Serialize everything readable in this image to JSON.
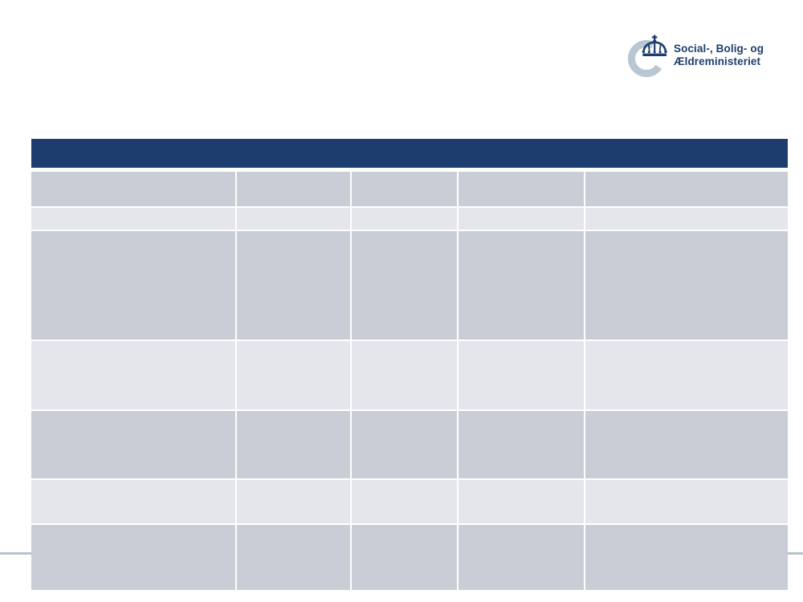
{
  "logo": {
    "icon_name": "danish-crown-crescent-logo",
    "name_line1": "Social-, Bolig- og",
    "name_line2": "Ældreministeriet",
    "text_color": "#1e3d6e",
    "crown_color": "#1e3d6e",
    "crescent_color": "#b9c7d2"
  },
  "title_bar": {
    "label": "",
    "background": "#1c3d6e"
  },
  "table": {
    "column_count": 5,
    "row_colors": {
      "dark": "#c9cdd5",
      "light": "#e4e6eb"
    },
    "rows": [
      {
        "cells": [
          "",
          "",
          "",
          "",
          ""
        ]
      },
      {
        "cells": [
          "",
          "",
          "",
          "",
          ""
        ]
      },
      {
        "cells": [
          "",
          "",
          "",
          "",
          ""
        ]
      },
      {
        "cells": [
          "",
          "",
          "",
          "",
          ""
        ]
      },
      {
        "cells": [
          "",
          "",
          "",
          "",
          ""
        ]
      },
      {
        "cells": [
          "",
          "",
          "",
          "",
          ""
        ]
      },
      {
        "cells": [
          "",
          "",
          "",
          "",
          ""
        ]
      }
    ]
  },
  "divider": {
    "color": "#b5c4cb"
  }
}
